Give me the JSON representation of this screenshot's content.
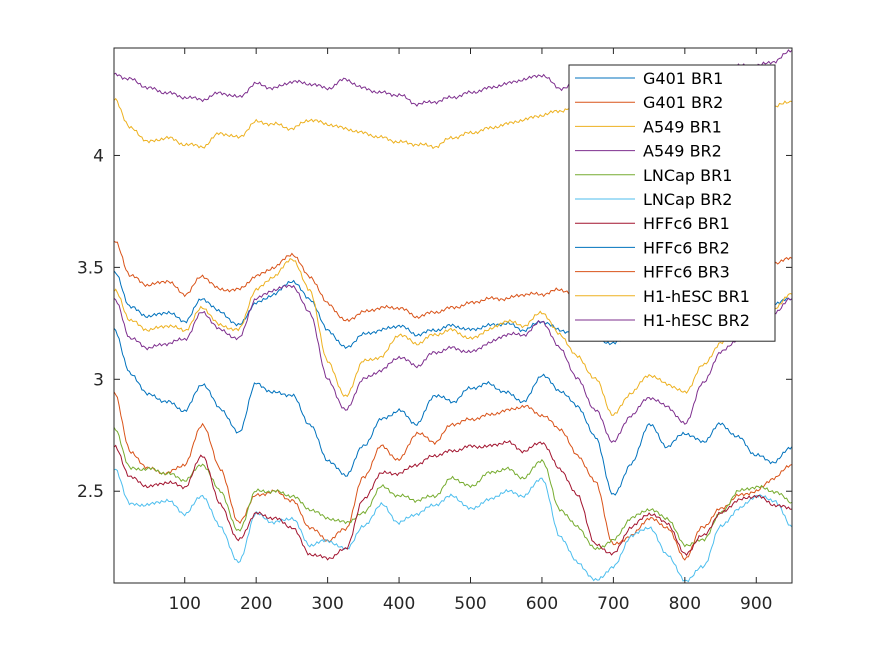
{
  "chart_data": {
    "type": "line",
    "title": "",
    "xlabel": "",
    "ylabel": "",
    "xlim": [
      1,
      950
    ],
    "ylim": [
      2.09,
      4.48
    ],
    "xticks": [
      100,
      200,
      300,
      400,
      500,
      600,
      700,
      800,
      900
    ],
    "yticks": [
      2.5,
      3,
      3.5,
      4
    ],
    "ytick_labels": [
      "2.5",
      "3",
      "3.5",
      "4"
    ],
    "grid": false,
    "legend_position": "top-right",
    "series": [
      {
        "name": "G401 BR1",
        "color": "#0072BD",
        "x": [
          1,
          25,
          50,
          75,
          100,
          125,
          150,
          175,
          200,
          225,
          250,
          275,
          300,
          325,
          350,
          375,
          400,
          425,
          450,
          475,
          500,
          525,
          550,
          575,
          600,
          625,
          650,
          675,
          700,
          725,
          750,
          775,
          800,
          825,
          850,
          875,
          900,
          925,
          950
        ],
        "values": [
          3.22,
          3.02,
          2.93,
          2.9,
          2.86,
          2.98,
          2.87,
          2.76,
          2.98,
          2.94,
          2.93,
          2.8,
          2.64,
          2.57,
          2.7,
          2.82,
          2.86,
          2.8,
          2.93,
          2.9,
          2.96,
          2.98,
          2.94,
          2.9,
          3.02,
          2.95,
          2.88,
          2.74,
          2.48,
          2.62,
          2.8,
          2.7,
          2.76,
          2.72,
          2.8,
          2.74,
          2.66,
          2.63,
          2.7
        ]
      },
      {
        "name": "G401 BR2",
        "color": "#D95319",
        "x": [
          1,
          25,
          50,
          75,
          100,
          125,
          150,
          175,
          200,
          225,
          250,
          275,
          300,
          325,
          350,
          375,
          400,
          425,
          450,
          475,
          500,
          525,
          550,
          575,
          600,
          625,
          650,
          675,
          700,
          725,
          750,
          775,
          800,
          825,
          850,
          875,
          900,
          925,
          950
        ],
        "values": [
          2.94,
          2.67,
          2.6,
          2.58,
          2.62,
          2.8,
          2.6,
          2.36,
          2.48,
          2.5,
          2.46,
          2.34,
          2.28,
          2.33,
          2.56,
          2.7,
          2.64,
          2.76,
          2.72,
          2.8,
          2.82,
          2.84,
          2.86,
          2.88,
          2.84,
          2.78,
          2.66,
          2.54,
          2.26,
          2.3,
          2.38,
          2.34,
          2.2,
          2.34,
          2.42,
          2.48,
          2.5,
          2.56,
          2.62
        ]
      },
      {
        "name": "A549 BR1",
        "color": "#EDB120",
        "x": [
          1,
          25,
          50,
          75,
          100,
          125,
          150,
          175,
          200,
          225,
          250,
          275,
          300,
          325,
          350,
          375,
          400,
          425,
          450,
          475,
          500,
          525,
          550,
          575,
          600,
          625,
          650,
          675,
          700,
          725,
          750,
          775,
          800,
          825,
          850,
          875,
          900,
          925,
          950
        ],
        "values": [
          4.25,
          4.12,
          4.06,
          4.08,
          4.05,
          4.04,
          4.1,
          4.08,
          4.15,
          4.14,
          4.12,
          4.16,
          4.14,
          4.12,
          4.1,
          4.08,
          4.06,
          4.05,
          4.04,
          4.08,
          4.1,
          4.12,
          4.14,
          4.16,
          4.18,
          4.2,
          4.22,
          4.21,
          4.2,
          4.22,
          4.24,
          4.22,
          4.23,
          4.24,
          4.22,
          4.23,
          4.24,
          4.22,
          4.24
        ]
      },
      {
        "name": "A549 BR2",
        "color": "#7E2F8E",
        "x": [
          1,
          25,
          50,
          75,
          100,
          125,
          150,
          175,
          200,
          225,
          250,
          275,
          300,
          325,
          350,
          375,
          400,
          425,
          450,
          475,
          500,
          525,
          550,
          575,
          600,
          625,
          650,
          675,
          700,
          725,
          750,
          775,
          800,
          825,
          850,
          875,
          900,
          925,
          950
        ],
        "values": [
          4.36,
          4.34,
          4.3,
          4.28,
          4.26,
          4.25,
          4.28,
          4.26,
          4.32,
          4.3,
          4.33,
          4.32,
          4.3,
          4.34,
          4.3,
          4.28,
          4.27,
          4.23,
          4.24,
          4.26,
          4.28,
          4.3,
          4.32,
          4.34,
          4.36,
          4.3,
          4.32,
          4.33,
          4.34,
          4.35,
          4.36,
          4.37,
          4.38,
          4.38,
          4.39,
          4.4,
          4.4,
          4.42,
          4.47
        ]
      },
      {
        "name": "LNCap BR1",
        "color": "#77AC30",
        "x": [
          1,
          25,
          50,
          75,
          100,
          125,
          150,
          175,
          200,
          225,
          250,
          275,
          300,
          325,
          350,
          375,
          400,
          425,
          450,
          475,
          500,
          525,
          550,
          575,
          600,
          625,
          650,
          675,
          700,
          725,
          750,
          775,
          800,
          825,
          850,
          875,
          900,
          925,
          950
        ],
        "values": [
          2.78,
          2.6,
          2.6,
          2.58,
          2.55,
          2.62,
          2.5,
          2.32,
          2.5,
          2.5,
          2.48,
          2.42,
          2.38,
          2.36,
          2.4,
          2.52,
          2.48,
          2.46,
          2.48,
          2.56,
          2.52,
          2.58,
          2.6,
          2.56,
          2.64,
          2.42,
          2.34,
          2.24,
          2.28,
          2.38,
          2.42,
          2.38,
          2.26,
          2.28,
          2.4,
          2.5,
          2.52,
          2.5,
          2.45
        ]
      },
      {
        "name": "LNCap BR2",
        "color": "#4DBEEE",
        "x": [
          1,
          25,
          50,
          75,
          100,
          125,
          150,
          175,
          200,
          225,
          250,
          275,
          300,
          325,
          350,
          375,
          400,
          425,
          450,
          475,
          500,
          525,
          550,
          575,
          600,
          625,
          650,
          675,
          700,
          725,
          750,
          775,
          800,
          825,
          850,
          875,
          900,
          925,
          950
        ],
        "values": [
          2.6,
          2.44,
          2.44,
          2.46,
          2.4,
          2.48,
          2.34,
          2.18,
          2.4,
          2.36,
          2.38,
          2.26,
          2.28,
          2.24,
          2.34,
          2.44,
          2.36,
          2.4,
          2.44,
          2.48,
          2.42,
          2.46,
          2.5,
          2.48,
          2.56,
          2.3,
          2.18,
          2.1,
          2.16,
          2.3,
          2.34,
          2.22,
          2.1,
          2.16,
          2.34,
          2.42,
          2.48,
          2.46,
          2.34
        ]
      },
      {
        "name": "HFFc6 BR1",
        "color": "#A2142F",
        "x": [
          1,
          25,
          50,
          75,
          100,
          125,
          150,
          175,
          200,
          225,
          250,
          275,
          300,
          325,
          350,
          375,
          400,
          425,
          450,
          475,
          500,
          525,
          550,
          575,
          600,
          625,
          650,
          675,
          700,
          725,
          750,
          775,
          800,
          825,
          850,
          875,
          900,
          925,
          950
        ],
        "values": [
          2.7,
          2.56,
          2.52,
          2.54,
          2.52,
          2.66,
          2.44,
          2.28,
          2.4,
          2.38,
          2.34,
          2.22,
          2.2,
          2.24,
          2.46,
          2.58,
          2.58,
          2.62,
          2.66,
          2.68,
          2.7,
          2.7,
          2.72,
          2.68,
          2.72,
          2.6,
          2.48,
          2.26,
          2.22,
          2.34,
          2.4,
          2.36,
          2.22,
          2.3,
          2.4,
          2.46,
          2.48,
          2.44,
          2.42
        ]
      },
      {
        "name": "HFFc6 BR2",
        "color": "#0072BD",
        "x": [
          1,
          25,
          50,
          75,
          100,
          125,
          150,
          175,
          200,
          225,
          250,
          275,
          300,
          325,
          350,
          375,
          400,
          425,
          450,
          475,
          500,
          525,
          550,
          575,
          600,
          625,
          650,
          675,
          700,
          725,
          750,
          775,
          800,
          825,
          850,
          875,
          900,
          925,
          950
        ],
        "values": [
          3.48,
          3.32,
          3.28,
          3.3,
          3.26,
          3.36,
          3.3,
          3.24,
          3.34,
          3.38,
          3.44,
          3.36,
          3.22,
          3.14,
          3.2,
          3.22,
          3.24,
          3.2,
          3.22,
          3.24,
          3.22,
          3.24,
          3.25,
          3.22,
          3.26,
          3.22,
          3.2,
          3.18,
          3.16,
          3.2,
          3.24,
          3.26,
          3.28,
          3.3,
          3.28,
          3.3,
          3.32,
          3.34,
          3.36
        ]
      },
      {
        "name": "HFFc6 BR3",
        "color": "#D95319",
        "x": [
          1,
          25,
          50,
          75,
          100,
          125,
          150,
          175,
          200,
          225,
          250,
          275,
          300,
          325,
          350,
          375,
          400,
          425,
          450,
          475,
          500,
          525,
          550,
          575,
          600,
          625,
          650,
          675,
          700,
          725,
          750,
          775,
          800,
          825,
          850,
          875,
          900,
          925,
          950
        ],
        "values": [
          3.62,
          3.46,
          3.42,
          3.44,
          3.38,
          3.46,
          3.4,
          3.4,
          3.46,
          3.5,
          3.56,
          3.46,
          3.34,
          3.26,
          3.3,
          3.32,
          3.32,
          3.28,
          3.3,
          3.32,
          3.34,
          3.36,
          3.36,
          3.38,
          3.38,
          3.4,
          3.38,
          3.36,
          3.34,
          3.36,
          3.4,
          3.42,
          3.44,
          3.46,
          3.48,
          3.48,
          3.5,
          3.52,
          3.54
        ]
      },
      {
        "name": "H1-hESC BR1",
        "color": "#EDB120",
        "x": [
          1,
          25,
          50,
          75,
          100,
          125,
          150,
          175,
          200,
          225,
          250,
          275,
          300,
          325,
          350,
          375,
          400,
          425,
          450,
          475,
          500,
          525,
          550,
          575,
          600,
          625,
          650,
          675,
          700,
          725,
          750,
          775,
          800,
          825,
          850,
          875,
          900,
          925,
          950
        ],
        "values": [
          3.4,
          3.26,
          3.22,
          3.24,
          3.22,
          3.32,
          3.24,
          3.22,
          3.4,
          3.46,
          3.54,
          3.4,
          3.08,
          2.92,
          3.08,
          3.1,
          3.2,
          3.16,
          3.2,
          3.22,
          3.18,
          3.22,
          3.26,
          3.24,
          3.3,
          3.2,
          3.1,
          3.0,
          2.84,
          2.94,
          3.02,
          2.98,
          2.94,
          3.06,
          3.16,
          3.22,
          3.3,
          3.32,
          3.38
        ]
      },
      {
        "name": "H1-hESC BR2",
        "color": "#7E2F8E",
        "x": [
          1,
          25,
          50,
          75,
          100,
          125,
          150,
          175,
          200,
          225,
          250,
          275,
          300,
          325,
          350,
          375,
          400,
          425,
          450,
          475,
          500,
          525,
          550,
          575,
          600,
          625,
          650,
          675,
          700,
          725,
          750,
          775,
          800,
          825,
          850,
          875,
          900,
          925,
          950
        ],
        "values": [
          3.36,
          3.18,
          3.14,
          3.16,
          3.18,
          3.3,
          3.22,
          3.18,
          3.36,
          3.4,
          3.42,
          3.3,
          3.0,
          2.86,
          3.0,
          3.04,
          3.1,
          3.06,
          3.12,
          3.14,
          3.12,
          3.16,
          3.2,
          3.2,
          3.26,
          3.14,
          3.0,
          2.86,
          2.72,
          2.84,
          2.92,
          2.88,
          2.8,
          2.98,
          3.12,
          3.18,
          3.26,
          3.3,
          3.36
        ]
      }
    ]
  }
}
